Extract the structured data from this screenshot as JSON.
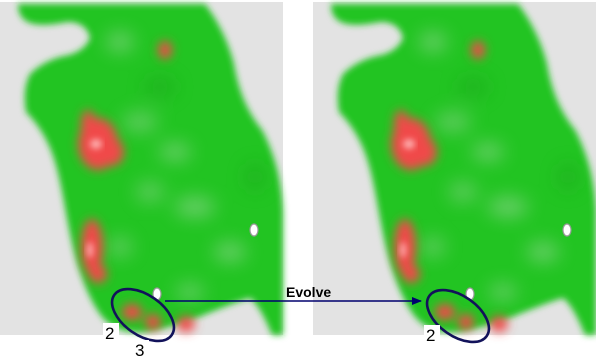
{
  "panels": [
    {
      "id": "before",
      "labels": [
        "2",
        "3"
      ]
    },
    {
      "id": "after",
      "labels": [
        "2"
      ]
    }
  ],
  "arrow": {
    "label": "Evolve",
    "color": "#00006e"
  },
  "colors": {
    "background": "#e3e3e3",
    "terrain": "#21c421",
    "hotspot": "#f04848",
    "hotspot_core": "#ffb0b0",
    "ellipse": "#12125a"
  }
}
